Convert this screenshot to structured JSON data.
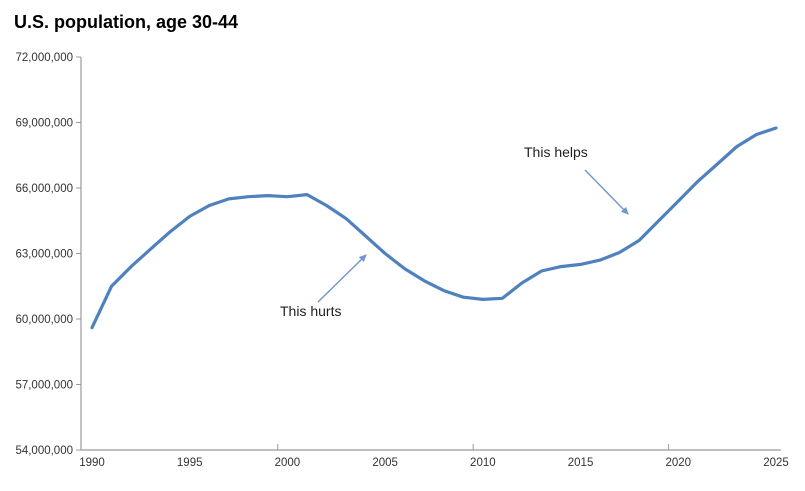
{
  "chart_data": {
    "type": "line",
    "title": "U.S. population, age 30-44",
    "series": [
      {
        "name": "U.S. population age 30-44",
        "x": [
          1990,
          1991,
          1992,
          1993,
          1994,
          1995,
          1996,
          1997,
          1998,
          1999,
          2000,
          2001,
          2002,
          2003,
          2004,
          2005,
          2006,
          2007,
          2008,
          2009,
          2010,
          2011,
          2012,
          2013,
          2014,
          2015,
          2016,
          2017,
          2018,
          2019,
          2020,
          2021,
          2022,
          2023,
          2024,
          2025
        ],
        "values": [
          59600000,
          61500000,
          62400000,
          63200000,
          64000000,
          64700000,
          65200000,
          65500000,
          65600000,
          65650000,
          65600000,
          65700000,
          65200000,
          64600000,
          63800000,
          63000000,
          62300000,
          61750000,
          61300000,
          61000000,
          60900000,
          60950000,
          61650000,
          62200000,
          62400000,
          62500000,
          62700000,
          63050000,
          63600000,
          64500000,
          65400000,
          66300000,
          67100000,
          67900000,
          68450000,
          68750000
        ]
      }
    ],
    "xlabel": "",
    "ylabel": "",
    "xlim": [
      1990,
      2025
    ],
    "ylim": [
      54000000,
      72000000
    ],
    "grid": "off",
    "legend": "none",
    "y_ticks": [
      {
        "label": "72,000,000",
        "value": 72000000
      },
      {
        "label": "69,000,000",
        "value": 69000000
      },
      {
        "label": "66,000,000",
        "value": 66000000
      },
      {
        "label": "63,000,000",
        "value": 63000000
      },
      {
        "label": "60,000,000",
        "value": 60000000
      },
      {
        "label": "57,000,000",
        "value": 57000000
      },
      {
        "label": "54,000,000",
        "value": 54000000
      }
    ],
    "x_ticks": [
      {
        "label": "1990",
        "value": 1990
      },
      {
        "label": "1995",
        "value": 1995
      },
      {
        "label": "2000",
        "value": 2000
      },
      {
        "label": "2005",
        "value": 2005
      },
      {
        "label": "2010",
        "value": 2010
      },
      {
        "label": "2015",
        "value": 2015
      },
      {
        "label": "2020",
        "value": 2020
      },
      {
        "label": "2025",
        "value": 2025
      }
    ],
    "axis_tick_marks_between_years": [
      2000,
      2010,
      2020
    ],
    "annotations": [
      {
        "text": "This hurts",
        "points_to": "declining segment of the line around 2004"
      },
      {
        "text": "This helps",
        "points_to": "rising segment of the line around 2018"
      }
    ]
  },
  "colors": {
    "line": "#4F81BD",
    "arrow": "#7096CB",
    "axis": "#9B9B9B",
    "tick_label": "#333333",
    "title": "#000000",
    "background": "#FFFFFF"
  }
}
